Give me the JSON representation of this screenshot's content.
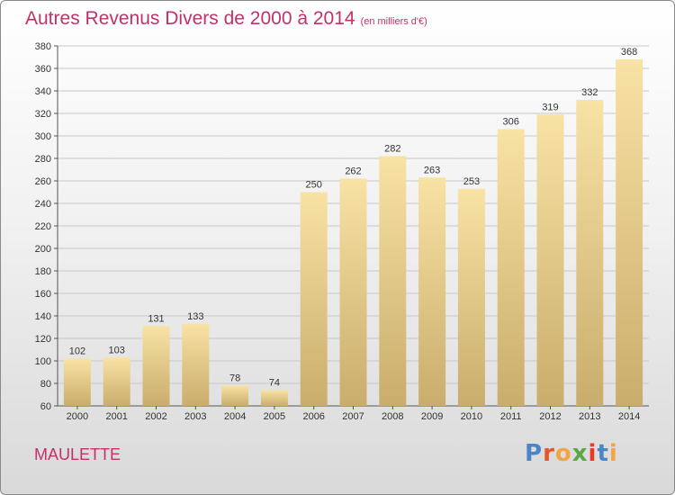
{
  "chart_data": {
    "type": "bar",
    "title": "Autres Revenus Divers de 2000 à 2014",
    "subtitle": "(en milliers d'€)",
    "categories": [
      "2000",
      "2001",
      "2002",
      "2003",
      "2004",
      "2005",
      "2006",
      "2007",
      "2008",
      "2009",
      "2010",
      "2011",
      "2012",
      "2013",
      "2014"
    ],
    "values": [
      102,
      103,
      131,
      133,
      78,
      74,
      250,
      262,
      282,
      263,
      253,
      306,
      319,
      332,
      368
    ],
    "ylim": [
      60,
      380
    ],
    "yticks": [
      60,
      80,
      100,
      120,
      140,
      160,
      180,
      200,
      220,
      240,
      260,
      280,
      300,
      320,
      340,
      360,
      380
    ],
    "grid": true,
    "xlabel": "",
    "ylabel": ""
  },
  "place_name": "MAULETTE",
  "logo": {
    "text": "Proxiti"
  },
  "colors": {
    "title": "#c4306a",
    "bar_light": "#f8e2a4",
    "bar_dark": "#c9ad6c",
    "grid": "#c8c8c8"
  }
}
